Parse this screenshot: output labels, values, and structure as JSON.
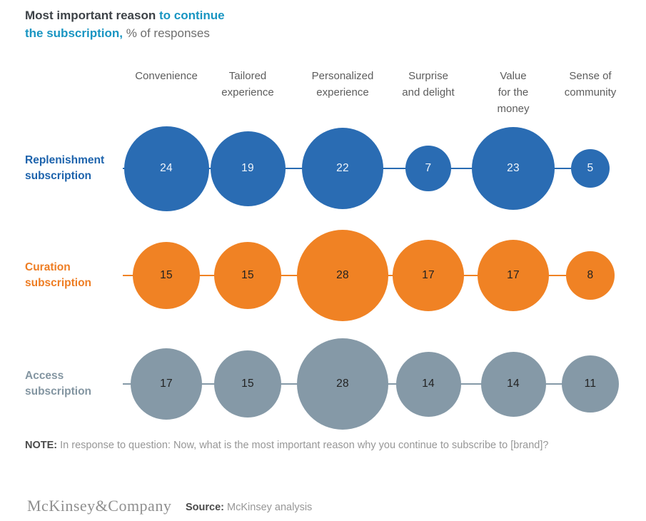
{
  "title": {
    "prefix": "Most important reason ",
    "highlight": "to continue the subscription,",
    "suffix": " % of responses"
  },
  "colors": {
    "title_highlight": "#1995c2",
    "replenishment_blue": "#2a6cb3",
    "curation_orange": "#f08224",
    "access_gray": "#8599a7"
  },
  "chart_data": {
    "type": "bubble",
    "title": "Most important reason to continue the subscription",
    "unit": "% of responses",
    "categories": [
      "Convenience",
      "Tailored\nexperience",
      "Personalized\nexperience",
      "Surprise\nand delight",
      "Value\nfor the\nmoney",
      "Sense of\ncommunity"
    ],
    "series": [
      {
        "name": "Replenishment\nsubscription",
        "values": [
          24,
          19,
          22,
          7,
          23,
          5
        ],
        "color": "#2a6cb3",
        "label_color": "#1d63ac",
        "value_text_color": "#f0f5fb"
      },
      {
        "name": "Curation\nsubscription",
        "values": [
          15,
          15,
          28,
          17,
          17,
          8
        ],
        "color": "#f08224",
        "label_color": "#ee7d23",
        "value_text_color": "#222222"
      },
      {
        "name": "Access\nsubscription",
        "values": [
          17,
          15,
          28,
          14,
          14,
          11
        ],
        "color": "#8599a7",
        "label_color": "#8395a1",
        "value_text_color": "#222222"
      }
    ],
    "legend_position": "none",
    "grid": false
  },
  "note": {
    "label": "NOTE:",
    "text": "In response to question: Now, what is the most important reason why you continue to subscribe to [brand]?"
  },
  "footer": {
    "logo": "McKinsey&Company",
    "source_label": "Source:",
    "source_text": "McKinsey analysis"
  }
}
